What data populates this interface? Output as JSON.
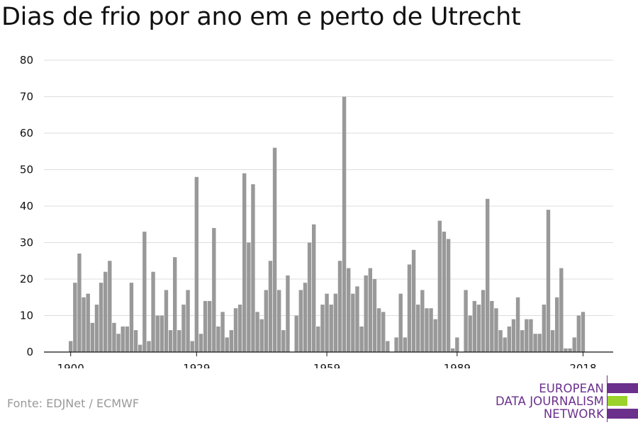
{
  "title": "Dias de frio por ano em e perto de Utrecht",
  "source": "Fonte: EDJNet / ECMWF",
  "logo": {
    "line1": "EUROPEAN",
    "line2": "DATA JOURNALISM",
    "line3": "NETWORK",
    "purple": "#6b2f8c",
    "green": "#9bd22b"
  },
  "colors": {
    "bar": "#999999",
    "grid": "#dddddd",
    "axis": "#111111"
  },
  "chart_data": {
    "type": "bar",
    "title": "Dias de frio por ano em e perto de Utrecht",
    "xlabel": "",
    "ylabel": "",
    "ylim": [
      0,
      80
    ],
    "yticks": [
      0,
      10,
      20,
      30,
      40,
      50,
      60,
      70,
      80
    ],
    "xticks": [
      1900,
      1929,
      1959,
      1989,
      2018
    ],
    "grid": true,
    "start_year": 1900,
    "x": [
      1900,
      1901,
      1902,
      1903,
      1904,
      1905,
      1906,
      1907,
      1908,
      1909,
      1910,
      1911,
      1912,
      1913,
      1914,
      1915,
      1916,
      1917,
      1918,
      1919,
      1920,
      1921,
      1922,
      1923,
      1924,
      1925,
      1926,
      1927,
      1928,
      1929,
      1930,
      1931,
      1932,
      1933,
      1934,
      1935,
      1936,
      1937,
      1938,
      1939,
      1940,
      1941,
      1942,
      1943,
      1944,
      1945,
      1946,
      1947,
      1948,
      1949,
      1950,
      1951,
      1952,
      1953,
      1954,
      1955,
      1956,
      1957,
      1958,
      1959,
      1960,
      1961,
      1962,
      1963,
      1964,
      1965,
      1966,
      1967,
      1968,
      1969,
      1970,
      1971,
      1972,
      1973,
      1974,
      1975,
      1976,
      1977,
      1978,
      1979,
      1980,
      1981,
      1982,
      1983,
      1984,
      1985,
      1986,
      1987,
      1988,
      1989,
      1990,
      1991,
      1992,
      1993,
      1994,
      1995,
      1996,
      1997,
      1998,
      1999,
      2000,
      2001,
      2002,
      2003,
      2004,
      2005,
      2006,
      2007,
      2008,
      2009,
      2010,
      2011,
      2012,
      2013,
      2014,
      2015,
      2016,
      2017,
      2018
    ],
    "values": [
      3,
      19,
      27,
      15,
      16,
      8,
      13,
      19,
      22,
      25,
      8,
      5,
      7,
      7,
      19,
      6,
      2,
      33,
      3,
      22,
      10,
      10,
      17,
      6,
      26,
      6,
      13,
      17,
      3,
      48,
      5,
      14,
      14,
      34,
      7,
      11,
      4,
      6,
      12,
      13,
      49,
      30,
      46,
      11,
      9,
      17,
      25,
      56,
      17,
      6,
      21,
      0,
      10,
      17,
      19,
      30,
      35,
      7,
      13,
      16,
      13,
      16,
      25,
      70,
      23,
      16,
      18,
      7,
      21,
      23,
      20,
      12,
      11,
      3,
      0,
      4,
      16,
      4,
      24,
      28,
      13,
      17,
      12,
      12,
      9,
      36,
      33,
      31,
      1,
      4,
      0,
      17,
      10,
      14,
      13,
      17,
      42,
      14,
      12,
      6,
      4,
      7,
      9,
      15,
      6,
      9,
      9,
      5,
      5,
      13,
      39,
      6,
      15,
      23,
      1,
      1,
      4,
      10,
      11
    ]
  }
}
